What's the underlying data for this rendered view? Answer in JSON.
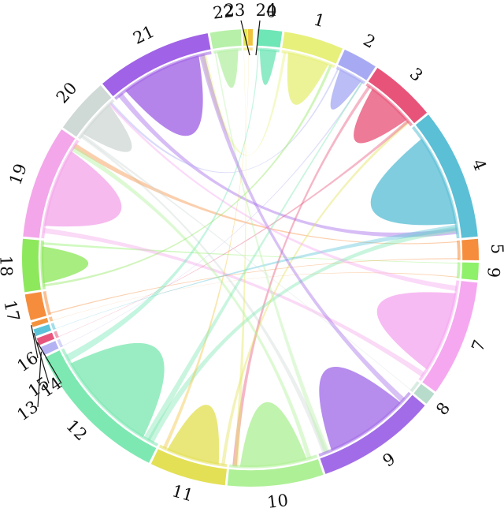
{
  "diagram": {
    "type": "chord",
    "segments": [
      {
        "id": "0",
        "label": "0",
        "color": "#6fe6b6"
      },
      {
        "id": "1",
        "label": "1",
        "color": "#e7f07a"
      },
      {
        "id": "2",
        "label": "2",
        "color": "#a7aaf3"
      },
      {
        "id": "3",
        "label": "3",
        "color": "#e85479"
      },
      {
        "id": "4",
        "label": "4",
        "color": "#5bbfd6"
      },
      {
        "id": "5",
        "label": "5",
        "color": "#f58d3c"
      },
      {
        "id": "6",
        "label": "6",
        "color": "#8ff06a"
      },
      {
        "id": "7",
        "label": "7",
        "color": "#f5a8f0"
      },
      {
        "id": "8",
        "label": "8",
        "color": "#b8dccc"
      },
      {
        "id": "9",
        "label": "9",
        "color": "#a26ce8"
      },
      {
        "id": "10",
        "label": "10",
        "color": "#aef096"
      },
      {
        "id": "11",
        "label": "11",
        "color": "#e3e055"
      },
      {
        "id": "12",
        "label": "12",
        "color": "#7ee8b2"
      },
      {
        "id": "13",
        "label": "13",
        "color": "#b4b2f2"
      },
      {
        "id": "14",
        "label": "14",
        "color": "#e8557c"
      },
      {
        "id": "15",
        "label": "15",
        "color": "#5cc3d9"
      },
      {
        "id": "16",
        "label": "16",
        "color": "#f4933e"
      },
      {
        "id": "17",
        "label": "17",
        "color": "#f58d3c"
      },
      {
        "id": "18",
        "label": "18",
        "color": "#8ee85c"
      },
      {
        "id": "19",
        "label": "19",
        "color": "#f4a6ea"
      },
      {
        "id": "20",
        "label": "20",
        "color": "#cfd9d6"
      },
      {
        "id": "21",
        "label": "21",
        "color": "#a062e6"
      },
      {
        "id": "22",
        "label": "22",
        "color": "#b7f0a8"
      },
      {
        "id": "23",
        "label": "23",
        "color": "#e3e85a"
      },
      {
        "id": "24",
        "label": "24",
        "color": "#f0c33c"
      }
    ],
    "links": [
      {
        "source": "21",
        "target": "21"
      },
      {
        "source": "4",
        "target": "4"
      },
      {
        "source": "3",
        "target": "3"
      },
      {
        "source": "7",
        "target": "7"
      },
      {
        "source": "9",
        "target": "9"
      },
      {
        "source": "12",
        "target": "12"
      },
      {
        "source": "11",
        "target": "11"
      },
      {
        "source": "10",
        "target": "10"
      },
      {
        "source": "19",
        "target": "19"
      },
      {
        "source": "18",
        "target": "18"
      },
      {
        "source": "1",
        "target": "1"
      },
      {
        "source": "2",
        "target": "2"
      },
      {
        "source": "0",
        "target": "0"
      },
      {
        "source": "22",
        "target": "22"
      },
      {
        "source": "20",
        "target": "20"
      },
      {
        "source": "21",
        "target": "4"
      },
      {
        "source": "20",
        "target": "9"
      },
      {
        "source": "5",
        "target": "19"
      },
      {
        "source": "6",
        "target": "18"
      },
      {
        "source": "3",
        "target": "10"
      },
      {
        "source": "2",
        "target": "20"
      },
      {
        "source": "1",
        "target": "21"
      },
      {
        "source": "19",
        "target": "7"
      },
      {
        "source": "12",
        "target": "4"
      },
      {
        "source": "11",
        "target": "3"
      },
      {
        "source": "17",
        "target": "5"
      },
      {
        "source": "16",
        "target": "6"
      },
      {
        "source": "15",
        "target": "4"
      },
      {
        "source": "14",
        "target": "3"
      },
      {
        "source": "13",
        "target": "2"
      },
      {
        "source": "22",
        "target": "9"
      },
      {
        "source": "0",
        "target": "12"
      },
      {
        "source": "23",
        "target": "10"
      },
      {
        "source": "24",
        "target": "11"
      },
      {
        "source": "20",
        "target": "8"
      },
      {
        "source": "9",
        "target": "21"
      },
      {
        "source": "10",
        "target": "19"
      },
      {
        "source": "12",
        "target": "2"
      },
      {
        "source": "7",
        "target": "20"
      },
      {
        "source": "18",
        "target": "1"
      }
    ]
  }
}
